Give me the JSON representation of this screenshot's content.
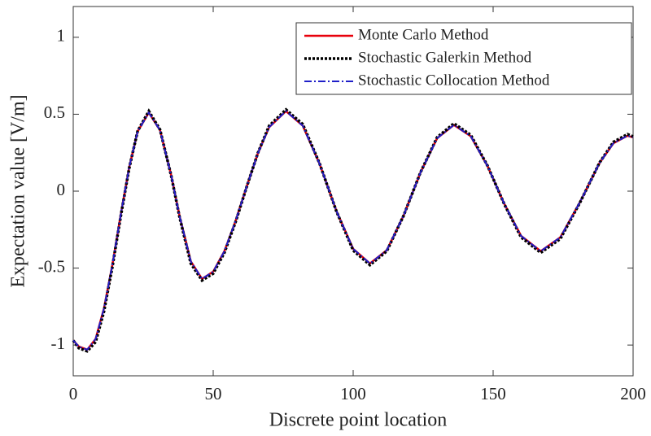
{
  "chart_data": {
    "type": "line",
    "xlabel": "Discrete point location",
    "ylabel": "Expectation value [V/m]",
    "x": [
      0,
      2,
      5,
      8,
      11,
      14,
      17,
      20,
      23,
      27,
      31,
      35,
      38,
      42,
      46,
      50,
      54,
      58,
      62,
      66,
      70,
      76,
      82,
      88,
      94,
      100,
      106,
      112,
      118,
      124,
      130,
      136,
      142,
      148,
      154,
      160,
      167,
      174,
      181,
      188,
      193,
      198,
      200
    ],
    "series": [
      {
        "name": "Monte Carlo Method",
        "color": "#e8000b",
        "style": "solid",
        "values": [
          -0.97,
          -1.01,
          -1.03,
          -0.96,
          -0.76,
          -0.477,
          -0.15,
          0.156,
          0.388,
          0.51,
          0.396,
          0.102,
          -0.163,
          -0.456,
          -0.57,
          -0.523,
          -0.39,
          -0.193,
          0.032,
          0.248,
          0.416,
          0.52,
          0.425,
          0.178,
          -0.128,
          -0.375,
          -0.47,
          -0.384,
          -0.159,
          0.119,
          0.344,
          0.43,
          0.357,
          0.163,
          -0.083,
          -0.291,
          -0.39,
          -0.3,
          -0.072,
          0.183,
          0.312,
          0.36,
          0.35
        ]
      },
      {
        "name": "Stochastic Galerkin Method",
        "color": "#000000",
        "style": "dotted",
        "values": [
          -0.97,
          -1.02,
          -1.04,
          -0.98,
          -0.78,
          -0.49,
          -0.16,
          0.15,
          0.39,
          0.52,
          0.4,
          0.1,
          -0.17,
          -0.47,
          -0.58,
          -0.535,
          -0.4,
          -0.2,
          0.03,
          0.25,
          0.425,
          0.53,
          0.435,
          0.18,
          -0.13,
          -0.385,
          -0.48,
          -0.39,
          -0.16,
          0.12,
          0.35,
          0.44,
          0.365,
          0.165,
          -0.085,
          -0.3,
          -0.4,
          -0.31,
          -0.075,
          0.185,
          0.32,
          0.37,
          0.355
        ]
      },
      {
        "name": "Stochastic Collocation Method",
        "color": "#1f1fc8",
        "style": "dashdot",
        "values": [
          -0.97,
          -1.01,
          -1.03,
          -0.96,
          -0.76,
          -0.477,
          -0.15,
          0.156,
          0.388,
          0.51,
          0.396,
          0.102,
          -0.163,
          -0.456,
          -0.57,
          -0.523,
          -0.39,
          -0.193,
          0.032,
          0.248,
          0.416,
          0.52,
          0.425,
          0.178,
          -0.128,
          -0.375,
          -0.47,
          -0.384,
          -0.159,
          0.119,
          0.344,
          0.43,
          0.357,
          0.163,
          -0.083,
          -0.291,
          -0.39,
          -0.3,
          -0.072,
          0.183,
          0.312,
          0.36,
          0.35
        ]
      }
    ],
    "xlim": [
      0,
      200
    ],
    "xticks": [
      0,
      50,
      100,
      150,
      200
    ],
    "ylim": [
      -1.2,
      1.2
    ],
    "yticks": [
      -1,
      -0.5,
      0,
      0.5,
      1
    ],
    "grid": false,
    "legend": "upper right"
  }
}
